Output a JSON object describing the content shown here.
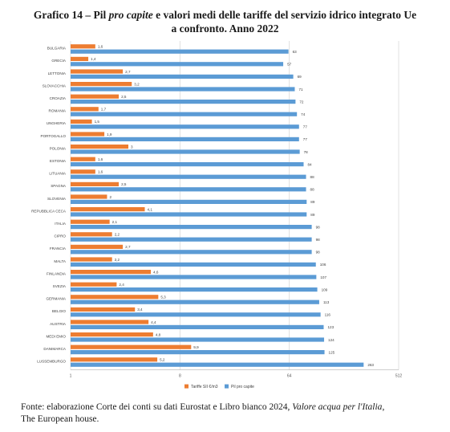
{
  "title": {
    "part1": "Grafico 14 – Pil ",
    "part2": "pro capite",
    "part3": " e valori medi delle tariffe del servizio idrico integrato Ue",
    "line2": "a confronto. Anno 2022"
  },
  "source": {
    "part1": "Fonte: elaborazione Corte dei conti su dati Eurostat e Libro bianco 2024, ",
    "part2": "Valore acqua per l'Italia",
    "part3": ",",
    "line2": "The European house."
  },
  "colors": {
    "orange": "#ED7D31",
    "blue": "#5B9BD5"
  },
  "chart_data": {
    "type": "bar",
    "orientation": "horizontal",
    "scale": "log",
    "categories": [
      "BULGARIA",
      "GRECIA",
      "LETTONIA",
      "SLOVACCHIA",
      "CROAZIA",
      "ROMANIA",
      "UNGHERIA",
      "PORTOGALLO",
      "POLONIA",
      "ESTONIA",
      "LITUANIA",
      "SPAGNA",
      "SLOVENIA",
      "REPUBBLICA CECA",
      "ITALIA",
      "CIPRO",
      "FRANCIA",
      "MALTA",
      "FINLANDIA",
      "SVEZIA",
      "GERMANIA",
      "BELGIO",
      "AUSTRIA",
      "MEDI EMIO",
      "DANIMARCA",
      "LUSSEMBURGO"
    ],
    "series": [
      {
        "name": "Tariffe SII €/m3",
        "color": "#ED7D31",
        "values": [
          1.6,
          1.4,
          2.7,
          3.2,
          2.5,
          1.7,
          1.5,
          1.9,
          3,
          1.6,
          1.6,
          2.5,
          2,
          4.1,
          2.1,
          2.2,
          2.7,
          2.2,
          4.6,
          2.4,
          5.3,
          3.4,
          4.4,
          4.8,
          9.9,
          5.2
        ]
      },
      {
        "name": "Pil pro capite",
        "color": "#5B9BD5",
        "values": [
          63,
          57,
          69,
          71,
          72,
          74,
          77,
          77,
          78,
          84,
          88,
          88,
          89,
          89,
          98,
          98,
          98,
          106,
          107,
          109,
          113,
          116,
          123,
          124,
          125,
          263
        ]
      }
    ],
    "value_labels": {
      "orange": [
        "1,6",
        "1,4",
        "2,7",
        "3,2",
        "2,5",
        "1,7",
        "1,5",
        "1,9",
        "3",
        "1,6",
        "1,6",
        "2,5",
        "2",
        "4,1",
        "2,1",
        "2,2",
        "2,7",
        "2,2",
        "4,6",
        "2,4",
        "5,3",
        "3,4",
        "4,4",
        "4,8",
        "9,9",
        "5,2"
      ],
      "blue": [
        "63",
        "57",
        "69",
        "71",
        "72",
        "74",
        "77",
        "77",
        "78",
        "84",
        "88",
        "88",
        "89",
        "89",
        "98",
        "98",
        "98",
        "106",
        "107",
        "109",
        "113",
        "116",
        "123",
        "124",
        "125",
        "263"
      ]
    },
    "x_ticks": [
      1,
      8,
      64,
      512
    ],
    "x_tick_labels": [
      "1",
      "8",
      "64",
      "512"
    ],
    "xlim": [
      1,
      512
    ],
    "legend_position": "bottom"
  }
}
